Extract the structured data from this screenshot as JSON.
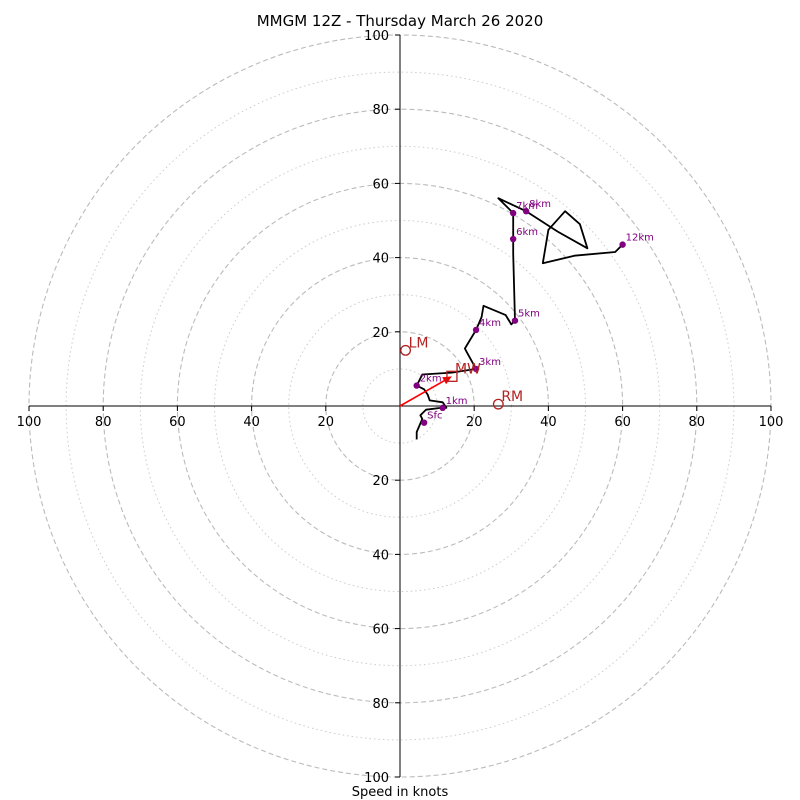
{
  "chart_data": {
    "type": "hodograph",
    "title": "MMGM 12Z - Thursday March 26 2020",
    "xlabel": "Speed in knots",
    "range": [
      -100,
      100
    ],
    "axis_ticks": [
      100,
      80,
      60,
      40,
      20,
      0,
      20,
      40,
      60,
      80,
      100
    ],
    "ring_labels": [
      "20",
      "40",
      "60",
      "80",
      "100"
    ],
    "rings_dashed": [
      20,
      40,
      60,
      80,
      100
    ],
    "rings_dotted": [
      10,
      30,
      50,
      70,
      90
    ],
    "grid": true,
    "colors": {
      "trace": "#000000",
      "height_marker": "#800080",
      "motion": "#b22222",
      "mean_vector": "#ff0000",
      "grid": "#bbbbbb"
    },
    "trace": [
      [
        4.5,
        -9
      ],
      [
        4.5,
        -6
      ],
      [
        5,
        -3
      ],
      [
        6,
        -1.5
      ],
      [
        8,
        0
      ],
      [
        10,
        1
      ],
      [
        12,
        1
      ],
      [
        12.5,
        0.5
      ],
      [
        12.5,
        -0.5
      ],
      [
        11.5,
        -1
      ],
      [
        8,
        -1.5
      ],
      [
        6,
        -3
      ],
      [
        6.5,
        -4
      ],
      [
        7,
        -5
      ],
      [
        8,
        -6
      ],
      [
        9,
        -5
      ],
      [
        9.5,
        -7
      ],
      [
        9,
        -8
      ],
      [
        9,
        -9
      ],
      [
        4.5,
        -9
      ]
    ],
    "trace_main": [
      [
        4.5,
        -9
      ],
      [
        4.5,
        -7
      ],
      [
        6,
        -3.5
      ],
      [
        5.5,
        -2.5
      ],
      [
        7,
        -1
      ],
      [
        11,
        -0.5
      ],
      [
        12.5,
        -0.5
      ],
      [
        11.5,
        1
      ],
      [
        8,
        1.5
      ],
      [
        7.5,
        3
      ],
      [
        6.5,
        4.5
      ],
      [
        4.5,
        5.5
      ],
      [
        6,
        8.5
      ],
      [
        14,
        9
      ],
      [
        20.5,
        10
      ],
      [
        18,
        14.5
      ],
      [
        17.5,
        15.5
      ],
      [
        20.5,
        20.5
      ],
      [
        22,
        24
      ],
      [
        22.5,
        27
      ],
      [
        28.5,
        24.5
      ],
      [
        30,
        22
      ],
      [
        31,
        23
      ],
      [
        30.5,
        41
      ],
      [
        30.5,
        45
      ],
      [
        30.5,
        52
      ],
      [
        26.5,
        56
      ],
      [
        34,
        52.5
      ],
      [
        42.5,
        47
      ],
      [
        50.5,
        42.5
      ],
      [
        48.5,
        49
      ],
      [
        44.5,
        52.5
      ],
      [
        40,
        47.5
      ],
      [
        38.5,
        38.5
      ],
      [
        47,
        40.5
      ],
      [
        58,
        41.5
      ],
      [
        60,
        43.5
      ]
    ],
    "height_markers": [
      {
        "label": "Sfc",
        "u": 6.5,
        "v": -4.5
      },
      {
        "label": "1km",
        "u": 11.5,
        "v": -0.5
      },
      {
        "label": "2km",
        "u": 4.5,
        "v": 5.5
      },
      {
        "label": "3km",
        "u": 20.5,
        "v": 10
      },
      {
        "label": "4km",
        "u": 20.5,
        "v": 20.5
      },
      {
        "label": "5km",
        "u": 31,
        "v": 23
      },
      {
        "label": "6km",
        "u": 30.5,
        "v": 45
      },
      {
        "label": "7km",
        "u": 30.5,
        "v": 52
      },
      {
        "label": "8km",
        "u": 34,
        "v": 52.5
      },
      {
        "label": "12km",
        "u": 60,
        "v": 43.5
      }
    ],
    "storm_motion": [
      {
        "label": "LM",
        "u": 1.5,
        "v": 15,
        "shape": "circle"
      },
      {
        "label": "RM",
        "u": 26.5,
        "v": 0.5,
        "shape": "circle"
      },
      {
        "label": "MW",
        "u": 14,
        "v": 8,
        "shape": "square"
      }
    ],
    "mean_vector": {
      "u": 14,
      "v": 8
    }
  }
}
